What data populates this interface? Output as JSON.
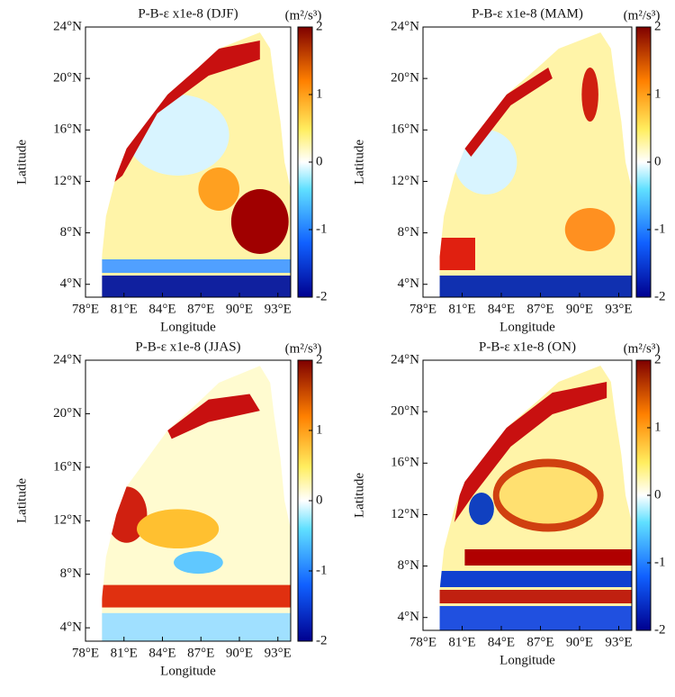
{
  "panels": [
    {
      "title": "P-B-ε x1e-8 (DJF)",
      "colorbar_label": "(m²/s³)",
      "xlabel": "Longitude",
      "ylabel": "Latitude",
      "xlim": [
        78,
        94
      ],
      "ylim": [
        3,
        24
      ],
      "xticks": [
        {
          "value": 78,
          "label": "78°E"
        },
        {
          "value": 81,
          "label": "81°E"
        },
        {
          "value": 84,
          "label": "84°E"
        },
        {
          "value": 87,
          "label": "87°E"
        },
        {
          "value": 90,
          "label": "90°E"
        },
        {
          "value": 93,
          "label": "93°E"
        }
      ],
      "yticks": [
        {
          "value": 4,
          "label": "4°N"
        },
        {
          "value": 8,
          "label": "8°N"
        },
        {
          "value": 12,
          "label": "12°N"
        },
        {
          "value": 16,
          "label": "16°N"
        },
        {
          "value": 20,
          "label": "20°N"
        },
        {
          "value": 24,
          "label": "24°N"
        }
      ],
      "colorbar_lim": [
        -2,
        2
      ],
      "colorbar_ticks": [
        2,
        1,
        0,
        -1,
        -2
      ]
    },
    {
      "title": "P-B-ε x1e-8 (MAM)",
      "colorbar_label": "(m²/s³)",
      "xlabel": "Longitude",
      "ylabel": "Latitude",
      "xlim": [
        78,
        94
      ],
      "ylim": [
        3,
        24
      ],
      "xticks": [
        {
          "value": 78,
          "label": "78°E"
        },
        {
          "value": 81,
          "label": "81°E"
        },
        {
          "value": 84,
          "label": "84°E"
        },
        {
          "value": 87,
          "label": "87°E"
        },
        {
          "value": 90,
          "label": "90°E"
        },
        {
          "value": 93,
          "label": "93°E"
        }
      ],
      "yticks": [
        {
          "value": 4,
          "label": "4°N"
        },
        {
          "value": 8,
          "label": "8°N"
        },
        {
          "value": 12,
          "label": "12°N"
        },
        {
          "value": 16,
          "label": "16°N"
        },
        {
          "value": 20,
          "label": "20°N"
        },
        {
          "value": 24,
          "label": "24°N"
        }
      ],
      "colorbar_lim": [
        -2,
        2
      ],
      "colorbar_ticks": [
        2,
        1,
        0,
        -1,
        -2
      ]
    },
    {
      "title": "P-B-ε x1e-8 (JJAS)",
      "colorbar_label": "(m²/s³)",
      "xlabel": "Longitude",
      "ylabel": "Latitude",
      "xlim": [
        78,
        94
      ],
      "ylim": [
        3,
        24
      ],
      "xticks": [
        {
          "value": 78,
          "label": "78°E"
        },
        {
          "value": 81,
          "label": "81°E"
        },
        {
          "value": 84,
          "label": "84°E"
        },
        {
          "value": 87,
          "label": "87°E"
        },
        {
          "value": 90,
          "label": "90°E"
        },
        {
          "value": 93,
          "label": "93°E"
        }
      ],
      "yticks": [
        {
          "value": 4,
          "label": "4°N"
        },
        {
          "value": 8,
          "label": "8°N"
        },
        {
          "value": 12,
          "label": "12°N"
        },
        {
          "value": 16,
          "label": "16°N"
        },
        {
          "value": 20,
          "label": "20°N"
        },
        {
          "value": 24,
          "label": "24°N"
        }
      ],
      "colorbar_lim": [
        -2,
        2
      ],
      "colorbar_ticks": [
        2,
        1,
        0,
        -1,
        -2
      ]
    },
    {
      "title": "P-B-ε x1e-8 (ON)",
      "colorbar_label": "(m²/s³)",
      "xlabel": "Longitude",
      "ylabel": "Latitude",
      "xlim": [
        78,
        94
      ],
      "ylim": [
        3,
        24
      ],
      "xticks": [
        {
          "value": 78,
          "label": "78°E"
        },
        {
          "value": 81,
          "label": "81°E"
        },
        {
          "value": 84,
          "label": "84°E"
        },
        {
          "value": 87,
          "label": "87°E"
        },
        {
          "value": 90,
          "label": "90°E"
        },
        {
          "value": 93,
          "label": "93°E"
        }
      ],
      "yticks": [
        {
          "value": 4,
          "label": "4°N"
        },
        {
          "value": 8,
          "label": "8°N"
        },
        {
          "value": 12,
          "label": "12°N"
        },
        {
          "value": 16,
          "label": "16°N"
        },
        {
          "value": 20,
          "label": "20°N"
        },
        {
          "value": 24,
          "label": "24°N"
        }
      ],
      "colorbar_lim": [
        -2,
        2
      ],
      "colorbar_ticks": [
        2,
        1,
        0,
        -1,
        -2
      ]
    }
  ]
}
